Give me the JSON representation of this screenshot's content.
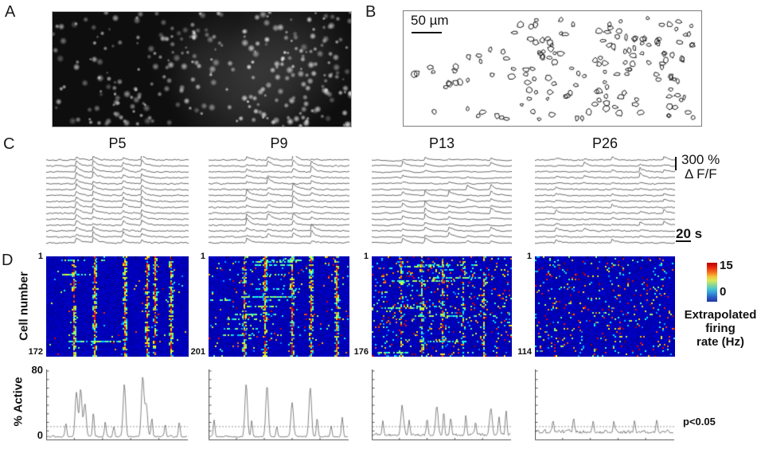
{
  "panel_labels": {
    "a": "A",
    "b": "B",
    "c": "C",
    "d": "D"
  },
  "panel_b": {
    "scalebar_label": "50 µm"
  },
  "panel_c": {
    "amplitude_scale": "300 %",
    "amplitude_unit": "Δ F/F",
    "time_scale": "20 s"
  },
  "panel_d": {
    "cell_axis_label": "Cell number",
    "active_axis_label": "% Active",
    "active_ymax": "80",
    "active_ymin": "0",
    "colorbar_max": "15",
    "colorbar_min": "0",
    "colorbar_caption": [
      "Extrapolated",
      "firing",
      "rate (Hz)"
    ],
    "threshold_label": "p<0.05"
  },
  "chart_data": {
    "types": [
      "image",
      "outline-map",
      "line-traces",
      "heatmap",
      "line"
    ],
    "heatmap_value_range_hz": [
      0,
      15
    ],
    "heatmap_ylabel": "Cell number",
    "active_ylabel": "% Active",
    "active_ylim_pct": [
      0,
      80
    ],
    "significance_threshold_pct": 15,
    "columns": [
      {
        "age": "P5",
        "cell_first": "1",
        "cell_count": "172",
        "trace": {
          "count": 15,
          "events": [
            0.21,
            0.33,
            0.54,
            0.67
          ],
          "sync_prob": 0.95,
          "peak_amp": 5.5,
          "noise": 2.2,
          "persist": 0.45
        },
        "heatmap": {
          "bands": [
            0.195,
            0.335,
            0.55,
            0.7,
            0.76,
            0.87
          ],
          "band_prob": 0.8,
          "speckle": 0.012,
          "row_streaks": 3
        },
        "active": {
          "base": 2.5,
          "noise": 2.6,
          "persist": 0.6,
          "peaks": [
            [
              0.14,
              16
            ],
            [
              0.215,
              52
            ],
            [
              0.245,
              56
            ],
            [
              0.275,
              38
            ],
            [
              0.335,
              28
            ],
            [
              0.42,
              17
            ],
            [
              0.48,
              12
            ],
            [
              0.555,
              62
            ],
            [
              0.685,
              70
            ],
            [
              0.71,
              38
            ],
            [
              0.75,
              22
            ],
            [
              0.845,
              14
            ],
            [
              0.945,
              17
            ]
          ]
        }
      },
      {
        "age": "P9",
        "cell_first": "1",
        "cell_count": "201",
        "trace": {
          "count": 15,
          "events": [
            0.27,
            0.42,
            0.6,
            0.73
          ],
          "sync_prob": 0.8,
          "peak_amp": 6.5,
          "noise": 2.4,
          "persist": 0.5
        },
        "heatmap": {
          "bands": [
            0.25,
            0.4,
            0.59,
            0.72,
            0.9
          ],
          "band_prob": 0.75,
          "speckle": 0.03,
          "row_streaks": 14
        },
        "active": {
          "base": 2.5,
          "noise": 2.6,
          "persist": 0.6,
          "peaks": [
            [
              0.04,
              20
            ],
            [
              0.27,
              62
            ],
            [
              0.31,
              18
            ],
            [
              0.42,
              60
            ],
            [
              0.49,
              12
            ],
            [
              0.6,
              40
            ],
            [
              0.73,
              58
            ],
            [
              0.78,
              22
            ],
            [
              0.88,
              12
            ],
            [
              0.96,
              22
            ]
          ]
        }
      },
      {
        "age": "P13",
        "cell_first": "1",
        "cell_count": "176",
        "trace": {
          "count": 15,
          "events": [
            0.22,
            0.38,
            0.55,
            0.68,
            0.85
          ],
          "sync_prob": 0.5,
          "peak_amp": 5,
          "noise": 4.2,
          "persist": 0.86
        },
        "heatmap": {
          "bands": [
            0.2,
            0.35,
            0.5,
            0.65,
            0.8
          ],
          "band_prob": 0.35,
          "speckle": 0.1,
          "row_streaks": 10
        },
        "active": {
          "base": 4,
          "noise": 4.5,
          "persist": 0.72,
          "peaks": [
            [
              0.08,
              16
            ],
            [
              0.22,
              34
            ],
            [
              0.27,
              18
            ],
            [
              0.4,
              20
            ],
            [
              0.47,
              34
            ],
            [
              0.52,
              26
            ],
            [
              0.57,
              20
            ],
            [
              0.68,
              22
            ],
            [
              0.75,
              16
            ],
            [
              0.86,
              32
            ],
            [
              0.92,
              20
            ],
            [
              0.97,
              26
            ]
          ]
        }
      },
      {
        "age": "P26",
        "cell_first": "1",
        "cell_count": "114",
        "trace": {
          "count": 15,
          "events": [
            0.15,
            0.35,
            0.55,
            0.75,
            0.92
          ],
          "sync_prob": 0.25,
          "peak_amp": 3.5,
          "noise": 2.4,
          "persist": 0.55
        },
        "heatmap": {
          "bands": [],
          "band_prob": 0,
          "speckle": 0.075,
          "row_streaks": 0
        },
        "active": {
          "base": 7,
          "noise": 5.5,
          "persist": 0.55,
          "peaks": [
            [
              0.13,
              14
            ],
            [
              0.28,
              16
            ],
            [
              0.42,
              12
            ],
            [
              0.57,
              13
            ],
            [
              0.72,
              12
            ],
            [
              0.88,
              15
            ]
          ]
        }
      }
    ]
  }
}
